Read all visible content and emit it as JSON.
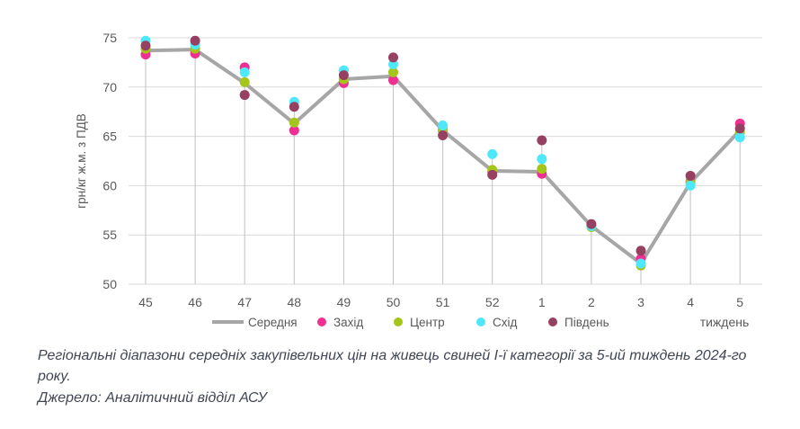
{
  "chart_data": {
    "type": "line+scatter",
    "title": "",
    "ylabel": "грн/кг ж.м. з ПДВ",
    "xlabel": "тиждень",
    "ylim": [
      50,
      75
    ],
    "yticks": [
      50,
      55,
      60,
      65,
      70,
      75
    ],
    "grid": "horizontal",
    "drop_lines": true,
    "legend_position": "bottom",
    "categories": [
      "45",
      "46",
      "47",
      "48",
      "49",
      "50",
      "51",
      "52",
      "1",
      "2",
      "3",
      "4",
      "5"
    ],
    "series": [
      {
        "name": "Середня",
        "type": "line",
        "color": "#a6a6a6",
        "values": [
          73.7,
          73.8,
          70.4,
          66.3,
          70.8,
          71.1,
          65.6,
          61.5,
          61.4,
          55.9,
          52.1,
          60.3,
          65.6
        ]
      },
      {
        "name": "Захід",
        "type": "scatter",
        "color": "#ef2f92",
        "values": [
          73.3,
          73.4,
          72.0,
          65.6,
          70.4,
          70.7,
          65.6,
          61.4,
          61.2,
          55.9,
          52.6,
          60.4,
          66.3
        ]
      },
      {
        "name": "Центр",
        "type": "scatter",
        "color": "#a4c519",
        "values": [
          73.9,
          73.9,
          70.5,
          66.4,
          70.8,
          71.5,
          65.7,
          61.6,
          61.7,
          55.8,
          51.9,
          60.3,
          65.4
        ]
      },
      {
        "name": "Схід",
        "type": "scatter",
        "color": "#4fe8fa",
        "values": [
          74.7,
          74.3,
          71.5,
          68.5,
          71.7,
          72.3,
          66.1,
          63.2,
          62.7,
          55.9,
          52.1,
          60.0,
          64.9
        ]
      },
      {
        "name": "Південь",
        "type": "scatter",
        "color": "#964161",
        "values": [
          74.2,
          74.7,
          69.2,
          68.0,
          71.2,
          73.0,
          65.1,
          61.1,
          64.6,
          56.1,
          53.4,
          61.0,
          65.8
        ]
      }
    ],
    "colors": {
      "grid": "#d9d9d9",
      "drop_line": "#c2c2c2",
      "tick_text": "#595959",
      "axis_text": "#595959"
    }
  },
  "caption": {
    "text": "Регіональні діапазони середніх закупівельних цін на живець свиней І-ї категорії за 5-ий тиждень 2024-го року.",
    "source": "Джерело: Аналітичний відділ АСУ"
  }
}
